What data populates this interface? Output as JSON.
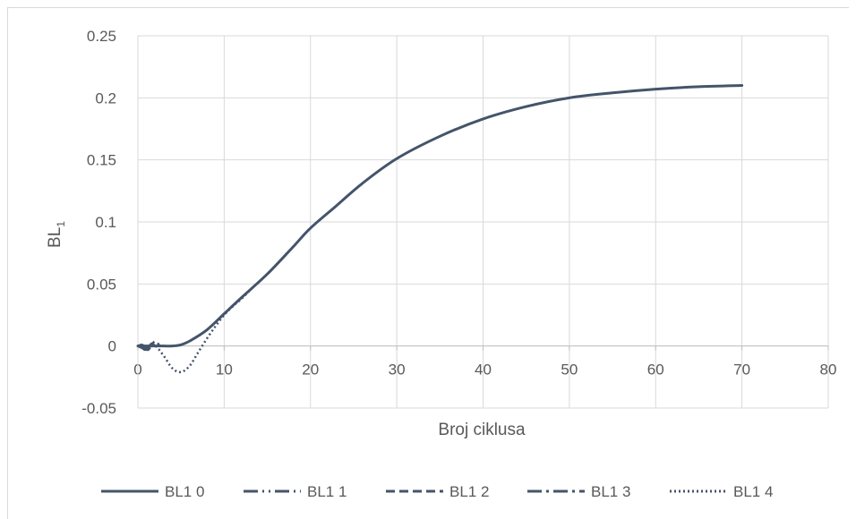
{
  "chart_data": {
    "type": "line",
    "title": "",
    "xlabel": "Broj ciklusa",
    "ylabel_main": "BL",
    "ylabel_sub": "1",
    "xlim": [
      0,
      80
    ],
    "ylim": [
      -0.05,
      0.25
    ],
    "x_ticks": [
      "0",
      "10",
      "20",
      "30",
      "40",
      "50",
      "60",
      "70",
      "80"
    ],
    "y_ticks": [
      "-0.05",
      "0",
      "0.05",
      "0.1",
      "0.15",
      "0.2",
      "0.25"
    ],
    "grid": true,
    "legend_position": "bottom",
    "line_color": "#44546a",
    "series": [
      {
        "name": "BL1 0",
        "style": "solid",
        "x": [
          0,
          1,
          2,
          3,
          4,
          5,
          6,
          8,
          10,
          12,
          15,
          18,
          20,
          23,
          26,
          30,
          35,
          40,
          45,
          50,
          55,
          60,
          65,
          70
        ],
        "y": [
          0,
          0,
          0,
          0,
          0,
          0.001,
          0.004,
          0.013,
          0.026,
          0.039,
          0.058,
          0.08,
          0.095,
          0.113,
          0.131,
          0.151,
          0.169,
          0.183,
          0.193,
          0.2,
          0.204,
          0.207,
          0.209,
          0.21
        ]
      },
      {
        "name": "BL1 1",
        "style": "long-dash-dot-dot",
        "x": [
          0,
          0.5,
          1,
          1.5,
          2
        ],
        "y": [
          0,
          0.001,
          -0.002,
          0.001,
          0
        ]
      },
      {
        "name": "BL1 2",
        "style": "dashed",
        "x": [
          0,
          0.4,
          0.8,
          1.2,
          1.6,
          2
        ],
        "y": [
          0,
          -0.001,
          -0.003,
          -0.001,
          0.002,
          0
        ]
      },
      {
        "name": "BL1 3",
        "style": "long-dash-dot",
        "x": [
          0,
          0.6,
          1.2,
          1.7,
          2.1,
          2.5
        ],
        "y": [
          0,
          -0.002,
          -0.003,
          0.002,
          0.004,
          0
        ]
      },
      {
        "name": "BL1 4",
        "style": "dotted",
        "x": [
          0,
          1,
          2,
          3,
          4,
          5,
          6,
          7,
          8,
          9,
          10,
          11,
          12,
          13
        ],
        "y": [
          0,
          -0.001,
          0,
          -0.008,
          -0.018,
          -0.021,
          -0.016,
          -0.005,
          0.006,
          0.016,
          0.025,
          0.032,
          0.038,
          0.045
        ]
      }
    ]
  }
}
